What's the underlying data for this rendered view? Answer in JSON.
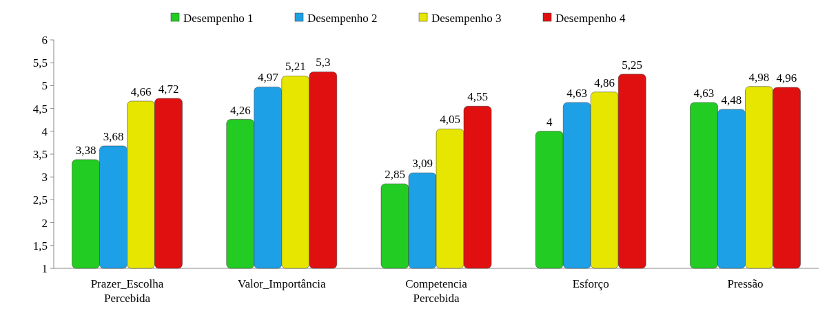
{
  "chart_data": {
    "type": "bar",
    "categories": [
      "Prazer_Escolha Percebida",
      "Valor_Importância",
      "Competencia Percebida",
      "Esforço",
      "Pressão"
    ],
    "series": [
      {
        "name": "Desempenho 1",
        "color": "#22cc22",
        "values": [
          3.38,
          4.26,
          2.85,
          4,
          4.63
        ],
        "value_labels": [
          "3,38",
          "4,26",
          "2,85",
          "4",
          "4,63"
        ]
      },
      {
        "name": "Desempenho 2",
        "color": "#1ea0e6",
        "values": [
          3.68,
          4.97,
          3.09,
          4.63,
          4.48
        ],
        "value_labels": [
          "3,68",
          "4,97",
          "3,09",
          "4,63",
          "4,48"
        ]
      },
      {
        "name": "Desempenho 3",
        "color": "#e6e600",
        "values": [
          4.66,
          5.21,
          4.05,
          4.86,
          4.98
        ],
        "value_labels": [
          "4,66",
          "5,21",
          "4,05",
          "4,86",
          "4,98"
        ]
      },
      {
        "name": "Desempenho 4",
        "color": "#e01010",
        "values": [
          4.72,
          5.3,
          4.55,
          5.25,
          4.96
        ],
        "value_labels": [
          "4,72",
          "5,3",
          "4,55",
          "5,25",
          "4,96"
        ]
      }
    ],
    "ylim": [
      1,
      6
    ],
    "yticks": [
      1,
      {
        "value": 1.5,
        "label": "1,5"
      },
      2,
      {
        "value": 2.5,
        "label": "2,5"
      },
      3,
      {
        "value": 3.5,
        "label": "3,5"
      },
      4,
      {
        "value": 4.5,
        "label": "4,5"
      },
      5,
      {
        "value": 5.5,
        "label": "5,5"
      },
      6
    ],
    "grid": false,
    "legend": "top"
  }
}
